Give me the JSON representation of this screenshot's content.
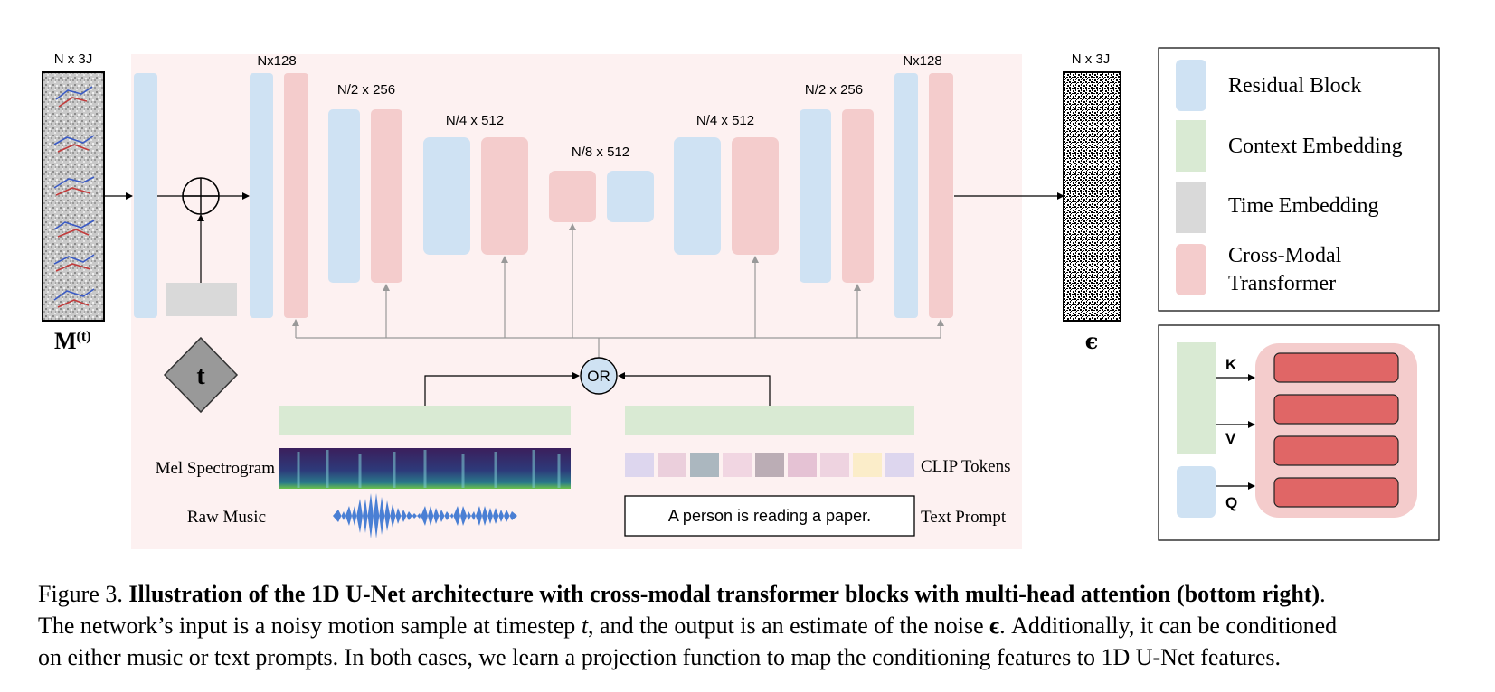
{
  "diagram": {
    "input": {
      "dim_label": "N x 3J",
      "symbol_base": "M",
      "symbol_sup": "(t)"
    },
    "output": {
      "dim_label": "N x 3J",
      "symbol": "ϵ"
    },
    "level_labels": {
      "enc1": "Nx128",
      "enc2": "N/2 x 256",
      "enc3": "N/4 x 512",
      "mid": "N/8 x 512",
      "dec3": "N/4 x 512",
      "dec2": "N/2 x 256",
      "dec1": "Nx128"
    },
    "time_node": "t",
    "or_node": "OR",
    "mel_label": "Mel Spectrogram",
    "raw_music_label": "Raw Music",
    "clip_label": "CLIP Tokens",
    "text_prompt_label": "Text Prompt",
    "text_prompt_value": "A person is reading a paper.",
    "clip_token_colors": [
      "#ddd6ee",
      "#ebcfdc",
      "#abb7bf",
      "#f1d6e2",
      "#bbadb5",
      "#e5c2d4",
      "#eed3e0",
      "#fbedc9",
      "#ddd6ee"
    ],
    "colors": {
      "residual": "#cfe2f3",
      "context": "#d9ead3",
      "time": "#d9d9d9",
      "transformer": "#f4cccc",
      "attn_head": "#e06666",
      "background": "#fdf1f1"
    }
  },
  "legend": {
    "items": [
      {
        "label": "Residual Block"
      },
      {
        "label": "Context Embedding"
      },
      {
        "label": "Time Embedding"
      },
      {
        "label": "Cross-Modal"
      },
      {
        "label": "Transformer"
      }
    ]
  },
  "attention": {
    "k": "K",
    "v": "V",
    "q": "Q"
  },
  "caption": {
    "figure_label": "Figure 3.",
    "bold_title": "Illustration of the 1D U-Net architecture with cross-modal transformer blocks with multi-head attention (bottom right)",
    "after_title": ".",
    "line2_a": "The network’s input is a noisy motion sample at timestep ",
    "t_var": "t",
    "line2_b": ", and the output is an estimate of the noise ",
    "eps_var": "ϵ",
    "line2_c": ". Additionally, it can be conditioned",
    "line3": "on either music or text prompts. In both cases, we learn a projection function to map the conditioning features to 1D U-Net features."
  }
}
